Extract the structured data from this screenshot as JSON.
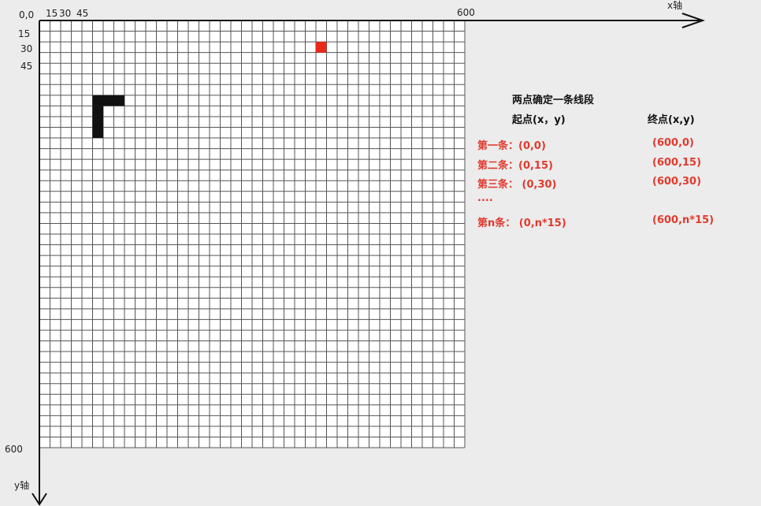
{
  "axes": {
    "origin_label": "0,0",
    "x_ticks": [
      "15",
      "30",
      "45",
      "600"
    ],
    "y_ticks": [
      "15",
      "30",
      "45",
      "600"
    ],
    "x_axis_label": "x轴",
    "y_axis_label": "y轴"
  },
  "grid": {
    "size": 600,
    "cell": 15,
    "line_color": "#555555",
    "background": "#ffffff"
  },
  "food": {
    "color": "#e8281b",
    "col": 26,
    "row": 2
  },
  "snake": {
    "color": "#111111",
    "cells": [
      [
        5,
        10
      ],
      [
        5,
        9
      ],
      [
        5,
        8
      ],
      [
        5,
        7
      ],
      [
        6,
        7
      ],
      [
        7,
        7
      ]
    ]
  },
  "panel": {
    "title": "两点确定一条线段",
    "start_header": "起点(x，y)",
    "end_header": "终点(x,y)",
    "rows": [
      {
        "start": "第一条：(0,0)",
        "end": "(600,0)"
      },
      {
        "start": "第二条：(0,15)",
        "end": "(600,15)"
      },
      {
        "start": "第三条： (0,30)",
        "end": "(600,30)"
      },
      {
        "dots": "...."
      },
      {
        "start": "第n条：  (0,n*15)",
        "end": "(600,n*15)"
      }
    ]
  }
}
